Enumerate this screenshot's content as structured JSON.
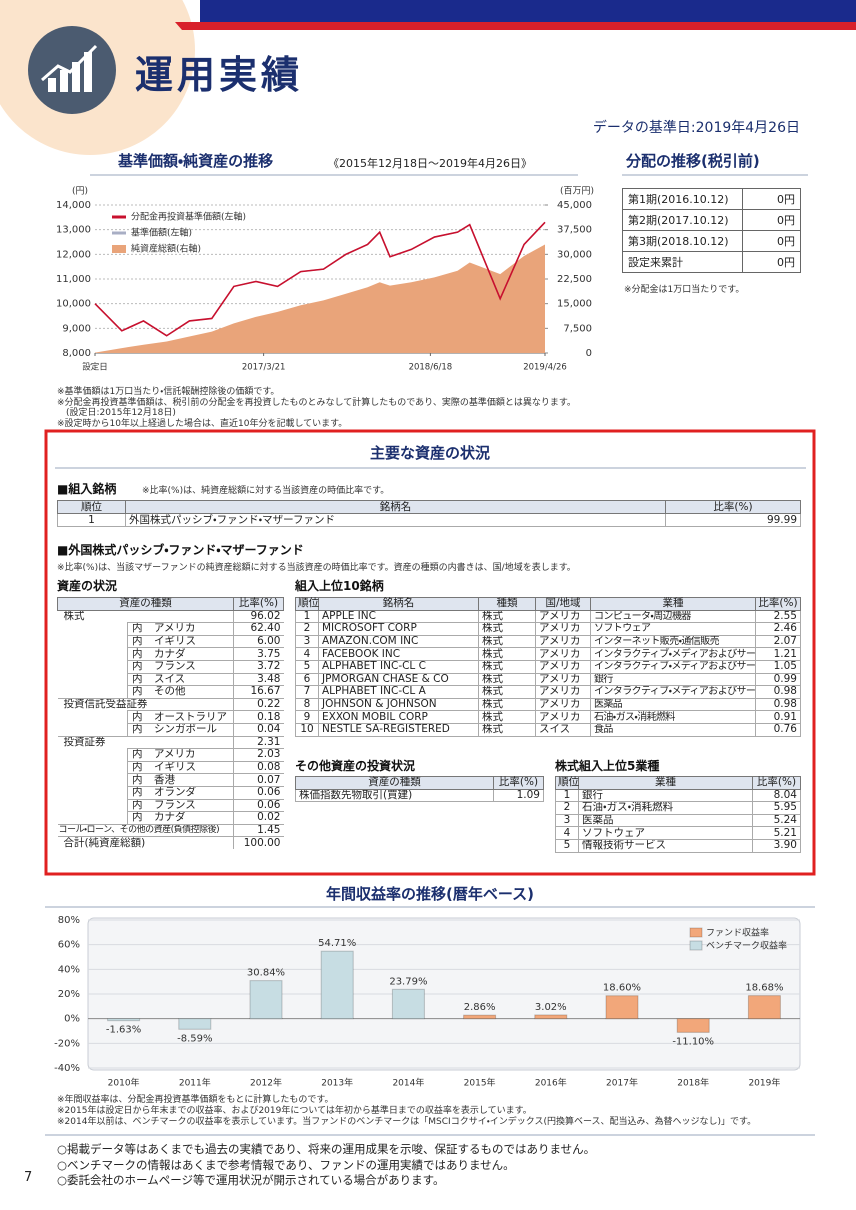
{
  "header": {
    "title": "運用実績",
    "date": "データの基準日:2019年4月26日"
  },
  "nav_chart": {
    "type": "line",
    "title": "基準価額・純資産の推移",
    "subtitle": "《2015年12月18日～2019年4月26日》",
    "y_unit": "(円)",
    "y2_unit": "(百万円)",
    "x": [
      "2015/12/18",
      "2016/2/29",
      "2016/4/28",
      "2016/6/30",
      "2016/8/31",
      "2016/10/31",
      "2016/12/30",
      "2017/2/28",
      "2017/4/28",
      "2017/6/30",
      "2017/8/31",
      "2017/10/31",
      "2017/12/29",
      "2018/1/31",
      "2018/2/28",
      "2018/4/27",
      "2018/6/29",
      "2018/8/31",
      "2018/10/3",
      "2018/12/25",
      "2019/2/28",
      "2019/4/26"
    ],
    "xlim": [
      "2015/12/18",
      "2019/4/26"
    ],
    "xticks": [
      {
        "value": "2015/12/18",
        "label": "設定日"
      },
      "2017/3/21",
      "2018/6/18",
      "2019/4/26"
    ],
    "ylim": [
      8000,
      14000
    ],
    "yticks": [
      {
        "value": 8000,
        "label": "8,000"
      },
      {
        "value": 9000,
        "label": "9,000"
      },
      {
        "value": 10000,
        "label": "10,000"
      },
      {
        "value": 11000,
        "label": "11,000"
      },
      {
        "value": 12000,
        "label": "12,000"
      },
      {
        "value": 13000,
        "label": "13,000"
      },
      {
        "value": 14000,
        "label": "14,000"
      }
    ],
    "y2lim": [
      0,
      45000
    ],
    "y2ticks": [
      0,
      {
        "value": 7500,
        "label": "7,500"
      },
      {
        "value": 15000,
        "label": "15,000"
      },
      {
        "value": 22500,
        "label": "22,500"
      },
      {
        "value": 30000,
        "label": "30,000"
      },
      {
        "value": 37500,
        "label": "37,500"
      },
      {
        "value": 45000,
        "label": "45,000"
      }
    ],
    "grid": true,
    "series": [
      {
        "name": "分配金再投資基準価額(左軸)",
        "color": "#c8102e",
        "values": [
          10000,
          8900,
          9300,
          8700,
          9300,
          9400,
          10700,
          10900,
          10700,
          11300,
          11400,
          12000,
          12400,
          12900,
          11900,
          12200,
          12700,
          12900,
          13200,
          10200,
          12400,
          13300
        ]
      },
      {
        "name": "基準価額(左軸)",
        "color": "#a8aec4",
        "values": [
          10000,
          8900,
          9300,
          8700,
          9300,
          9400,
          10700,
          10900,
          10700,
          11300,
          11400,
          12000,
          12400,
          12900,
          11900,
          12200,
          12700,
          12900,
          13200,
          10200,
          12400,
          13300
        ]
      },
      {
        "name": "純資産総額(右軸)",
        "color": "#e9a47a",
        "type": "area",
        "axis": "y2",
        "values": [
          100,
          1500,
          2500,
          3500,
          5000,
          6500,
          9000,
          11000,
          12500,
          14500,
          16000,
          18000,
          20000,
          21500,
          20500,
          21500,
          23000,
          25000,
          27500,
          24000,
          29500,
          33000
        ]
      }
    ]
  },
  "nav_notes": [
    "※基準価額は1万口当たり・信託報酬控除後の価額です。",
    "※分配金再投資基準価額は、税引前の分配金を再投資したものとみなして計算したものであり、実際の基準価額とは異なります。",
    "(設定日:2015年12月18日)",
    "※設定時から10年以上経過した場合は、直近10年分を記載しています。"
  ],
  "distribution": {
    "title": "分配の推移(税引前)",
    "rows": [
      [
        "第1期(2016.10.12)",
        "0円"
      ],
      [
        "第2期(2017.10.12)",
        "0円"
      ],
      [
        "第3期(2018.10.12)",
        "0円"
      ],
      [
        "設定来累計",
        "0円"
      ]
    ],
    "note": "※分配金は1万口当たりです。"
  },
  "assets": {
    "title": "主要な資産の状況",
    "holdings": {
      "heading": "■組入銘柄",
      "note": "※比率(%)は、純資産総額に対する当該資産の時価比率です。",
      "columns": [
        "順位",
        "銘柄名",
        "比率(%)"
      ],
      "rows": [
        [
          "1",
          "外国株式パッシブ・ファンド・マザーファンド",
          "99.99"
        ]
      ]
    },
    "mother": {
      "heading": "■外国株式パッシブ・ファンド・マザーファンド",
      "note": "※比率(%)は、当該マザーファンドの純資産総額に対する当該資産の時価比率です。資産の種類の内書きは、国/地域を表します。"
    },
    "asset_status": {
      "heading": "資産の状況",
      "columns": [
        "資産の種類",
        "比率(%)"
      ],
      "rows": [
        [
          "株式",
          "96.02"
        ],
        [
          "内",
          "アメリカ",
          "62.40"
        ],
        [
          "内",
          "イギリス",
          "6.00"
        ],
        [
          "内",
          "カナダ",
          "3.75"
        ],
        [
          "内",
          "フランス",
          "3.72"
        ],
        [
          "内",
          "スイス",
          "3.48"
        ],
        [
          "内",
          "その他",
          "16.67"
        ],
        [
          "投資信託受益証券",
          "0.22"
        ],
        [
          "内",
          "オーストラリア",
          "0.18"
        ],
        [
          "内",
          "シンガポール",
          "0.04"
        ],
        [
          "投資証券",
          "2.31"
        ],
        [
          "内",
          "アメリカ",
          "2.03"
        ],
        [
          "内",
          "イギリス",
          "0.08"
        ],
        [
          "内",
          "香港",
          "0.07"
        ],
        [
          "内",
          "オランダ",
          "0.06"
        ],
        [
          "内",
          "フランス",
          "0.06"
        ],
        [
          "内",
          "カナダ",
          "0.02"
        ],
        [
          "コール・ローン、その他の資産(負債控除後)",
          "1.45"
        ],
        [
          "合計(純資産総額)",
          "100.00"
        ]
      ]
    },
    "top10": {
      "heading": "組入上位10銘柄",
      "columns": [
        "順位",
        "銘柄名",
        "種類",
        "国/地域",
        "業種",
        "比率(%)"
      ],
      "rows": [
        [
          "1",
          "APPLE INC",
          "株式",
          "アメリカ",
          "コンピュータ・周辺機器",
          "2.55"
        ],
        [
          "2",
          "MICROSOFT CORP",
          "株式",
          "アメリカ",
          "ソフトウェア",
          "2.46"
        ],
        [
          "3",
          "AMAZON.COM INC",
          "株式",
          "アメリカ",
          "インターネット販売・通信販売",
          "2.07"
        ],
        [
          "4",
          "FACEBOOK INC",
          "株式",
          "アメリカ",
          "インタラクティブ・メディアおよびサービス",
          "1.21"
        ],
        [
          "5",
          "ALPHABET INC-CL C",
          "株式",
          "アメリカ",
          "インタラクティブ・メディアおよびサービス",
          "1.05"
        ],
        [
          "6",
          "JPMORGAN CHASE & CO",
          "株式",
          "アメリカ",
          "銀行",
          "0.99"
        ],
        [
          "7",
          "ALPHABET INC-CL A",
          "株式",
          "アメリカ",
          "インタラクティブ・メディアおよびサービス",
          "0.98"
        ],
        [
          "8",
          "JOHNSON & JOHNSON",
          "株式",
          "アメリカ",
          "医薬品",
          "0.98"
        ],
        [
          "9",
          "EXXON MOBIL CORP",
          "株式",
          "アメリカ",
          "石油・ガス・消耗燃料",
          "0.91"
        ],
        [
          "10",
          "NESTLE SA-REGISTERED",
          "株式",
          "スイス",
          "食品",
          "0.76"
        ]
      ]
    },
    "other": {
      "heading": "その他資産の投資状況",
      "columns": [
        "資産の種類",
        "比率(%)"
      ],
      "rows": [
        [
          "株価指数先物取引(買建)",
          "1.09"
        ]
      ]
    },
    "sectors": {
      "heading": "株式組入上位5業種",
      "columns": [
        "順位",
        "業種",
        "比率(%)"
      ],
      "rows": [
        [
          "1",
          "銀行",
          "8.04"
        ],
        [
          "2",
          "石油・ガス・消耗燃料",
          "5.95"
        ],
        [
          "3",
          "医薬品",
          "5.24"
        ],
        [
          "4",
          "ソフトウェア",
          "5.21"
        ],
        [
          "5",
          "情報技術サービス",
          "3.90"
        ]
      ]
    }
  },
  "annual_chart": {
    "type": "bar",
    "title": "年間収益率の推移(暦年ベース)",
    "categories": [
      "2010年",
      "2011年",
      "2012年",
      "2013年",
      "2014年",
      "2015年",
      "2016年",
      "2017年",
      "2018年",
      "2019年"
    ],
    "ylim": [
      -40,
      80
    ],
    "yticks": [
      {
        "value": -40,
        "label": "-40%"
      },
      {
        "value": -20,
        "label": "-20%"
      },
      {
        "value": 0,
        "label": "0%"
      },
      {
        "value": 20,
        "label": "20%"
      },
      {
        "value": 40,
        "label": "40%"
      },
      {
        "value": 60,
        "label": "60%"
      },
      {
        "value": 80,
        "label": "80%"
      }
    ],
    "series": [
      {
        "name": "ファンド収益率",
        "color": "#f2a77a",
        "values": [
          null,
          null,
          null,
          null,
          null,
          2.86,
          3.02,
          18.6,
          -11.1,
          18.68
        ],
        "value_labels": [
          null,
          null,
          null,
          null,
          null,
          "2.86%",
          "3.02%",
          "18.60%",
          "-11.10%",
          "18.68%"
        ]
      },
      {
        "name": "ベンチマーク収益率",
        "color": "#c7dde3",
        "values": [
          -1.63,
          -8.59,
          30.84,
          54.71,
          23.79,
          null,
          null,
          null,
          null,
          null
        ],
        "value_labels": [
          "-1.63%",
          "-8.59%",
          "30.84%",
          "54.71%",
          "23.79%",
          null,
          null,
          null,
          null,
          null
        ]
      }
    ]
  },
  "annual_notes": [
    "※年間収益率は、分配金再投資基準価額をもとに計算したものです。",
    "※2015年は設定日から年末までの収益率、および2019年については年初から基準日までの収益率を表示しています。",
    "※2014年以前は、ベンチマークの収益率を表示しています。当ファンドのベンチマークは「MSCIコクサイ・インデックス(円換算ベース、配当込み、為替ヘッジなし)」です。"
  ],
  "disclaimers": [
    "○掲載データ等はあくまでも過去の実績であり、将来の運用成果を示唆、保証するものではありません。",
    "○ベンチマークの情報はあくまで参考情報であり、ファンドの運用実績ではありません。",
    "○委託会社のホームページ等で運用状況が開示されている場合があります。"
  ],
  "page_number": "7"
}
